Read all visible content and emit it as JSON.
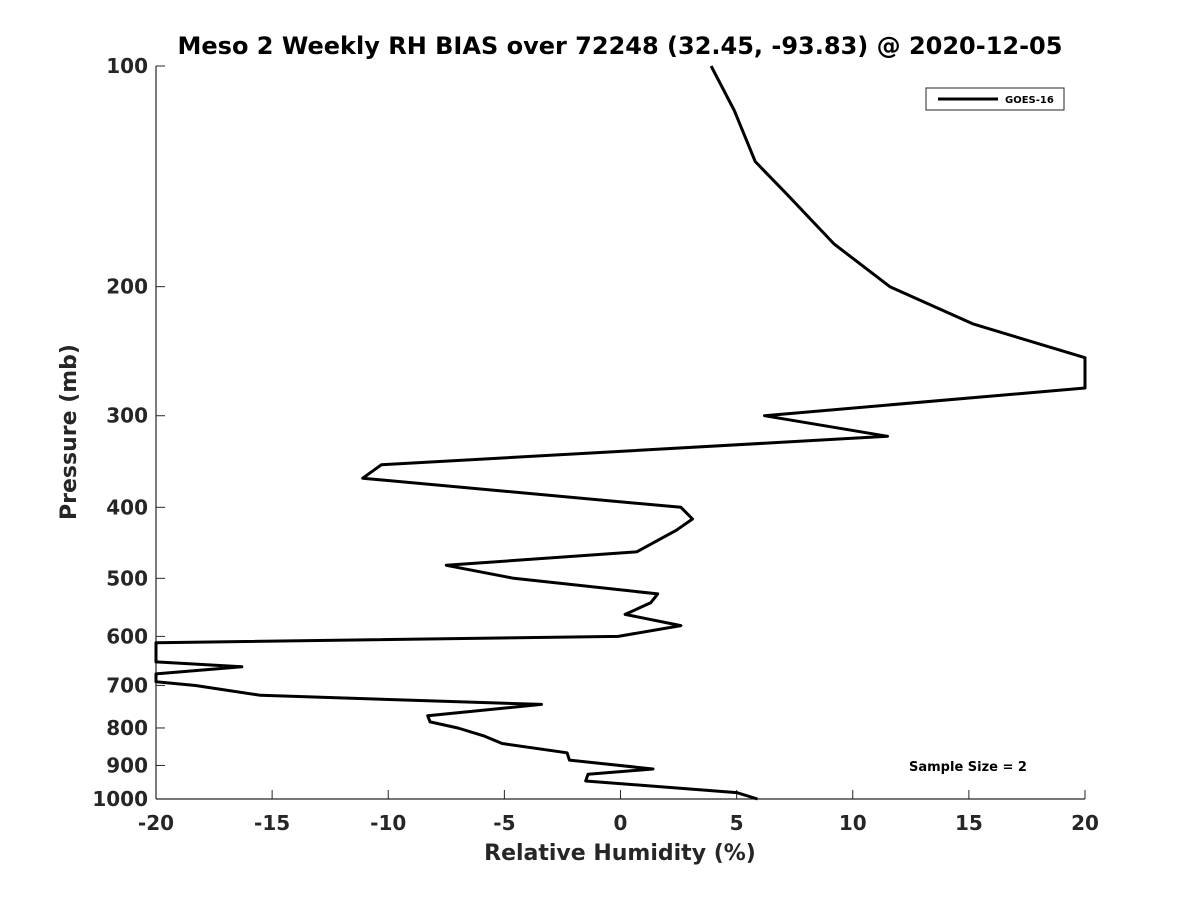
{
  "chart_data": {
    "type": "line",
    "title": "Meso 2 Weekly RH BIAS over 72248 (32.45, -93.83) @ 2020-12-05",
    "xlabel": "Relative Humidity (%)",
    "ylabel": "Pressure (mb)",
    "xlim": [
      -20,
      20
    ],
    "ylim": [
      100,
      1000
    ],
    "y_scale": "log",
    "y_reversed": true,
    "grid": false,
    "legend_position": "top-right",
    "x_ticks": [
      -20,
      -15,
      -10,
      -5,
      0,
      5,
      10,
      15,
      20
    ],
    "x_tick_labels": [
      "-20",
      "-15",
      "-10",
      "-5",
      "0",
      "5",
      "10",
      "15",
      "20"
    ],
    "y_ticks": [
      100,
      200,
      300,
      400,
      500,
      600,
      700,
      800,
      900,
      1000
    ],
    "y_tick_labels": [
      "100",
      "200",
      "300",
      "400",
      "500",
      "600",
      "700",
      "800",
      "900",
      "1000"
    ],
    "series": [
      {
        "name": "GOES-16",
        "color": "#000000",
        "points": [
          [
            3.9,
            100
          ],
          [
            4.9,
            115
          ],
          [
            5.8,
            135
          ],
          [
            7.2,
            150
          ],
          [
            9.2,
            175
          ],
          [
            11.6,
            200
          ],
          [
            15.2,
            225
          ],
          [
            20.0,
            250
          ],
          [
            20.0,
            275
          ],
          [
            6.2,
            300
          ],
          [
            11.5,
            320
          ],
          [
            -10.3,
            350
          ],
          [
            -11.1,
            365
          ],
          [
            2.6,
            400
          ],
          [
            3.1,
            415
          ],
          [
            2.4,
            430
          ],
          [
            0.7,
            460
          ],
          [
            -7.5,
            480
          ],
          [
            -4.6,
            500
          ],
          [
            1.6,
            525
          ],
          [
            1.3,
            540
          ],
          [
            0.2,
            560
          ],
          [
            2.6,
            580
          ],
          [
            -0.1,
            600
          ],
          [
            -20.0,
            612
          ],
          [
            -20.0,
            650
          ],
          [
            -16.3,
            660
          ],
          [
            -20.0,
            675
          ],
          [
            -20.0,
            692
          ],
          [
            -18.3,
            700
          ],
          [
            -15.5,
            722
          ],
          [
            -3.4,
            743
          ],
          [
            -8.3,
            770
          ],
          [
            -8.2,
            785
          ],
          [
            -7.0,
            800
          ],
          [
            -5.9,
            820
          ],
          [
            -5.1,
            840
          ],
          [
            -2.3,
            865
          ],
          [
            -2.2,
            885
          ],
          [
            1.4,
            910
          ],
          [
            -1.4,
            925
          ],
          [
            -1.5,
            945
          ],
          [
            5.0,
            980
          ],
          [
            5.9,
            1000
          ]
        ]
      }
    ],
    "annotations": [
      "Sample Size = 2"
    ]
  }
}
